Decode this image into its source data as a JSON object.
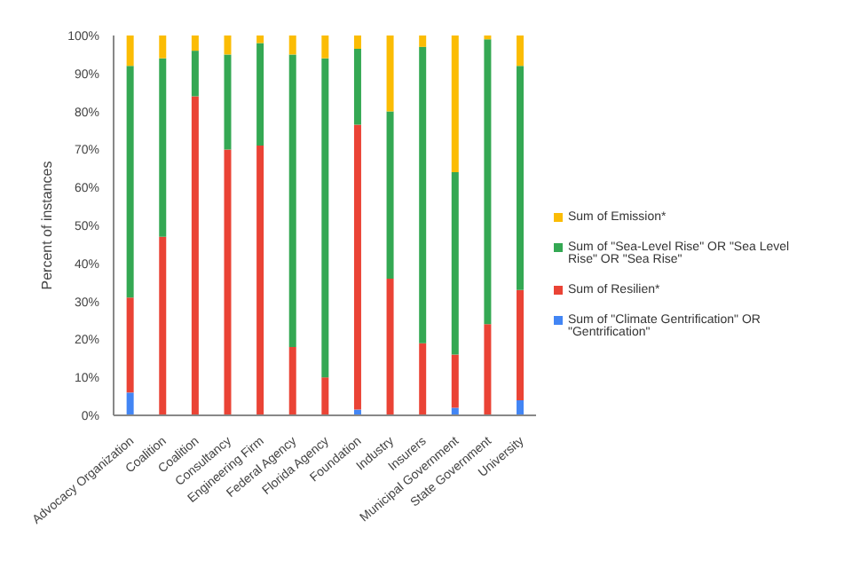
{
  "chart_data": {
    "type": "bar",
    "stacked": true,
    "ylabel": "Percent of instances",
    "categories": [
      "Advocacy Organization",
      "Coalition",
      "Coalition",
      "Consultancy",
      "Engineering Firm",
      "Federal Agency",
      "Florida Agency",
      "Foundation",
      "Industry",
      "Insurers",
      "Municipal Government",
      "State Government",
      "University"
    ],
    "series": [
      {
        "name": "Sum of \"Climate Gentrification\" OR \"Gentrification\"",
        "color": "#4285f4",
        "values": [
          6,
          0,
          0,
          0,
          0,
          0,
          0,
          1.5,
          0,
          0,
          2,
          0,
          4
        ]
      },
      {
        "name": "Sum of Resilien*",
        "color": "#ea4335",
        "values": [
          25,
          47,
          84,
          70,
          71,
          18,
          10,
          75,
          36,
          19,
          14,
          24,
          29
        ]
      },
      {
        "name": "Sum of \"Sea-Level Rise\"  OR \"Sea Level Rise\" OR \"Sea Rise\"",
        "color": "#34a853",
        "values": [
          61,
          47,
          12,
          25,
          27,
          77,
          84,
          20,
          44,
          78,
          48,
          75,
          59
        ]
      },
      {
        "name": "Sum of Emission*",
        "color": "#fbbc04",
        "values": [
          8,
          6,
          4,
          5,
          2,
          5,
          6,
          3.5,
          20,
          3,
          36,
          1,
          8
        ]
      }
    ],
    "ylim": [
      0,
      100
    ],
    "yticks": [
      {
        "value": 0,
        "label": "0%"
      },
      {
        "value": 10,
        "label": "10%"
      },
      {
        "value": 20,
        "label": "20%"
      },
      {
        "value": 30,
        "label": "30%"
      },
      {
        "value": 40,
        "label": "40%"
      },
      {
        "value": 50,
        "label": "50%"
      },
      {
        "value": 60,
        "label": "60%"
      },
      {
        "value": 70,
        "label": "70%"
      },
      {
        "value": 80,
        "label": "80%"
      },
      {
        "value": 90,
        "label": "90%"
      },
      {
        "value": 100,
        "label": "100%"
      }
    ],
    "grid": false,
    "legend": "right"
  }
}
